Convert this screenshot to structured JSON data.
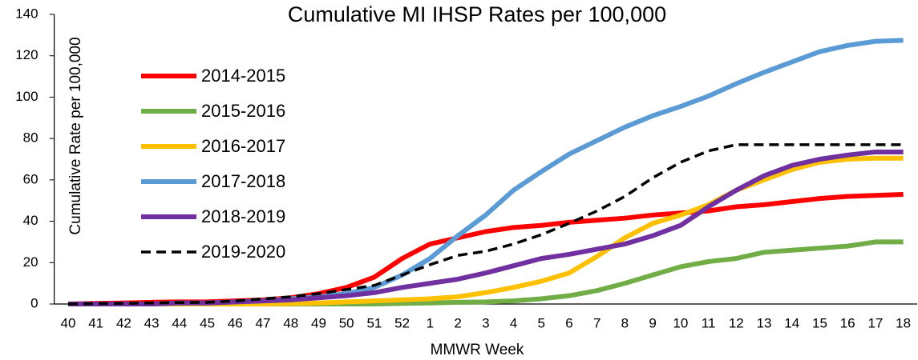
{
  "chart_data": {
    "type": "line",
    "title": "Cumulative MI IHSP Rates per 100,000",
    "x_label": "MMWR Week",
    "y_label": "Cumulative Rate per 100,000",
    "categories": [
      "40",
      "41",
      "42",
      "43",
      "44",
      "45",
      "46",
      "47",
      "48",
      "49",
      "50",
      "51",
      "52",
      "1",
      "2",
      "3",
      "4",
      "5",
      "6",
      "7",
      "8",
      "9",
      "10",
      "11",
      "12",
      "13",
      "14",
      "15",
      "16",
      "17",
      "18"
    ],
    "ylim": [
      0,
      140
    ],
    "yticks": [
      0,
      20,
      40,
      60,
      80,
      100,
      120,
      140
    ],
    "grid": false,
    "legend": "upper left",
    "series": [
      {
        "name": "2014-2015",
        "color": "#ff0000",
        "dashed": false,
        "values": [
          0,
          0.3,
          0.5,
          0.8,
          1,
          1,
          1.5,
          2,
          3,
          5,
          8,
          13,
          22,
          29,
          32,
          35,
          37,
          38,
          39.5,
          40.5,
          41.5,
          43,
          44,
          45,
          47,
          48,
          49.5,
          51,
          52,
          52.5,
          53
        ]
      },
      {
        "name": "2015-2016",
        "color": "#70ad47",
        "dashed": false,
        "values": [
          0,
          0,
          0,
          0,
          0,
          0,
          0,
          0,
          0,
          0,
          0,
          0,
          0.3,
          0.5,
          0.8,
          1,
          1.5,
          2.5,
          4,
          6.5,
          10,
          14,
          18,
          20.5,
          22,
          25,
          26,
          27,
          28,
          30,
          30
        ]
      },
      {
        "name": "2016-2017",
        "color": "#ffc000",
        "dashed": false,
        "values": [
          0,
          0,
          0,
          0,
          0,
          0,
          0,
          0,
          0.2,
          0.5,
          1,
          1.5,
          2,
          2.5,
          3.5,
          5.5,
          8,
          11,
          15,
          23,
          32,
          39,
          43,
          48,
          55,
          60,
          65,
          68.5,
          70,
          70.5,
          70.5
        ]
      },
      {
        "name": "2017-2018",
        "color": "#5b9bd5",
        "dashed": false,
        "values": [
          0,
          0,
          0,
          0,
          0.5,
          0.5,
          1,
          1.5,
          2.5,
          3.5,
          5,
          8,
          14,
          22,
          33,
          43,
          55,
          64,
          72.5,
          79,
          85.5,
          91,
          95.5,
          100.5,
          106.5,
          112,
          117,
          122,
          125,
          127,
          127.5
        ]
      },
      {
        "name": "2018-2019",
        "color": "#7030a0",
        "dashed": false,
        "values": [
          0,
          0,
          0,
          0,
          0.5,
          0.5,
          1,
          1.5,
          2,
          3,
          4,
          5.5,
          8,
          10,
          12,
          15,
          18.5,
          22,
          24,
          26.5,
          29,
          33,
          38,
          47,
          55,
          62,
          67,
          70,
          72,
          73.5,
          73.5
        ]
      },
      {
        "name": "2019-2020",
        "color": "#000000",
        "dashed": true,
        "values": [
          0,
          0.2,
          0.3,
          0.5,
          0.7,
          0.8,
          1.5,
          2.5,
          3.5,
          5,
          7,
          9,
          14,
          19,
          23.5,
          25.5,
          29,
          33.5,
          39,
          45,
          52,
          61,
          68.5,
          74,
          77,
          77,
          77,
          77,
          77,
          77,
          77
        ]
      }
    ]
  }
}
